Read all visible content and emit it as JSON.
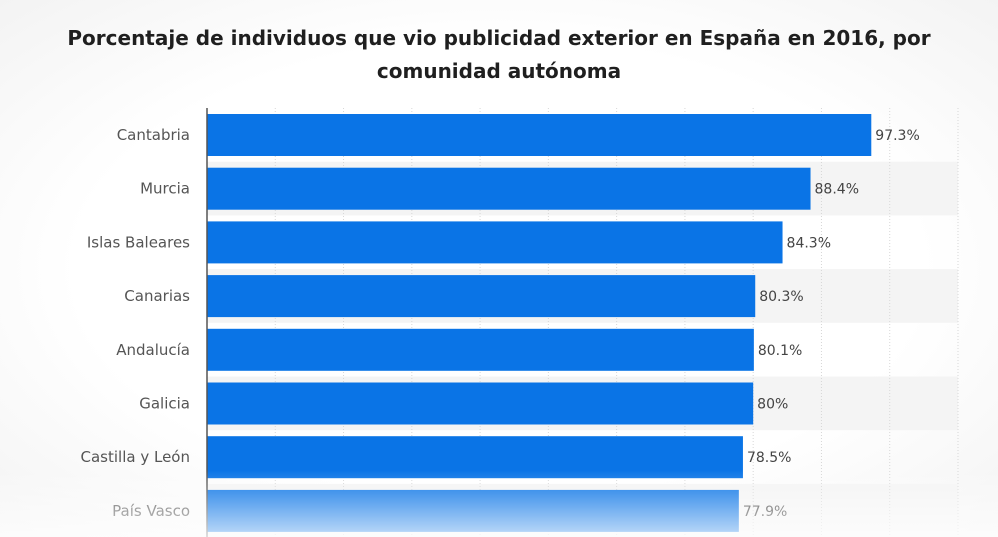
{
  "chart_data": {
    "type": "bar",
    "orientation": "horizontal",
    "title": "Porcentaje de individuos que vio publicidad exterior en España en 2016, por comunidad autónoma",
    "categories": [
      "Cantabria",
      "Murcia",
      "Islas Baleares",
      "Canarias",
      "Andalucía",
      "Galicia",
      "Castilla y León",
      "País Vasco"
    ],
    "values": [
      97.3,
      88.4,
      84.3,
      80.3,
      80.1,
      80,
      78.5,
      77.9
    ],
    "value_labels": [
      "97.3%",
      "88.4%",
      "84.3%",
      "80.3%",
      "80.1%",
      "80%",
      "78.5%",
      "77.9%"
    ],
    "xlim": [
      0,
      110
    ],
    "grid": true,
    "bar_color": "#0a74e6"
  }
}
